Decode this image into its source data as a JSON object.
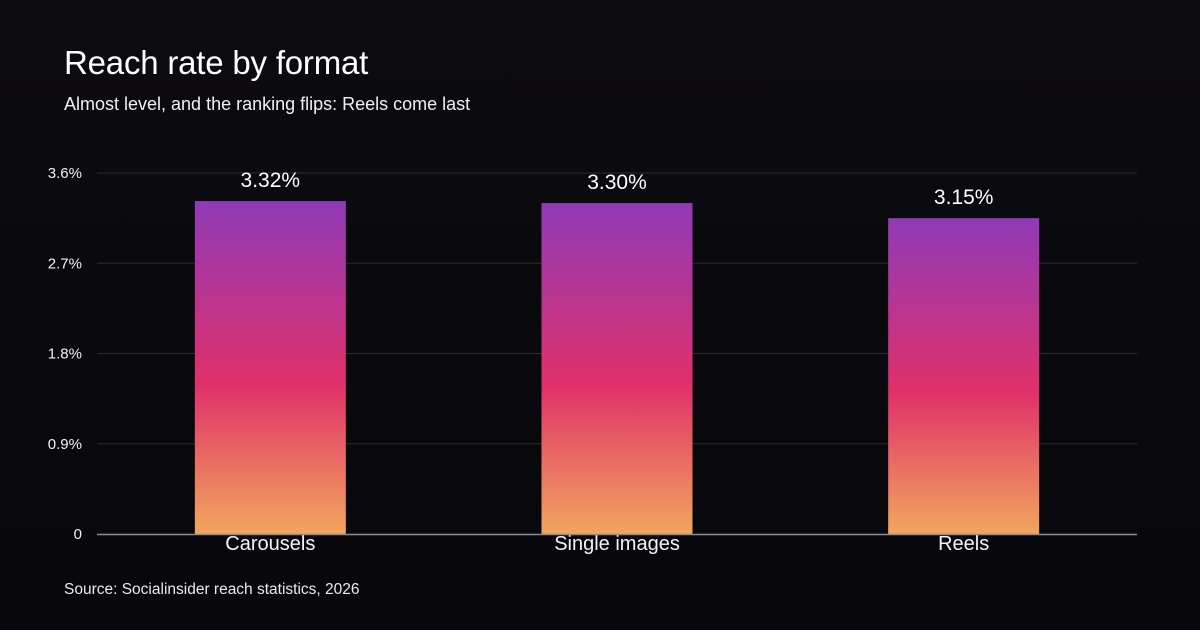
{
  "title": "Reach rate by format",
  "subtitle": "Almost level, and the ranking flips: Reels come last",
  "source": "Source: Socialinsider reach statistics, 2026",
  "colors": {
    "background": "#09090c",
    "gridline": "#2a2a30",
    "baseline": "#8c8c94",
    "bar_gradient_top": "#8f3ab8",
    "bar_gradient_mid": "#e0306a",
    "bar_gradient_bottom": "#f2a65e"
  },
  "chart_data": {
    "type": "bar",
    "categories": [
      "Carousels",
      "Single images",
      "Reels"
    ],
    "values": [
      3.32,
      3.3,
      3.15
    ],
    "value_labels": [
      "3.32%",
      "3.30%",
      "3.15%"
    ],
    "yticks": [
      0,
      0.9,
      1.8,
      2.7,
      3.6
    ],
    "ytick_labels": [
      "0",
      "0.9%",
      "1.8%",
      "2.7%",
      "3.6%"
    ],
    "ylim": [
      0,
      3.6
    ],
    "xlabel": "",
    "ylabel": "",
    "grid": true
  }
}
